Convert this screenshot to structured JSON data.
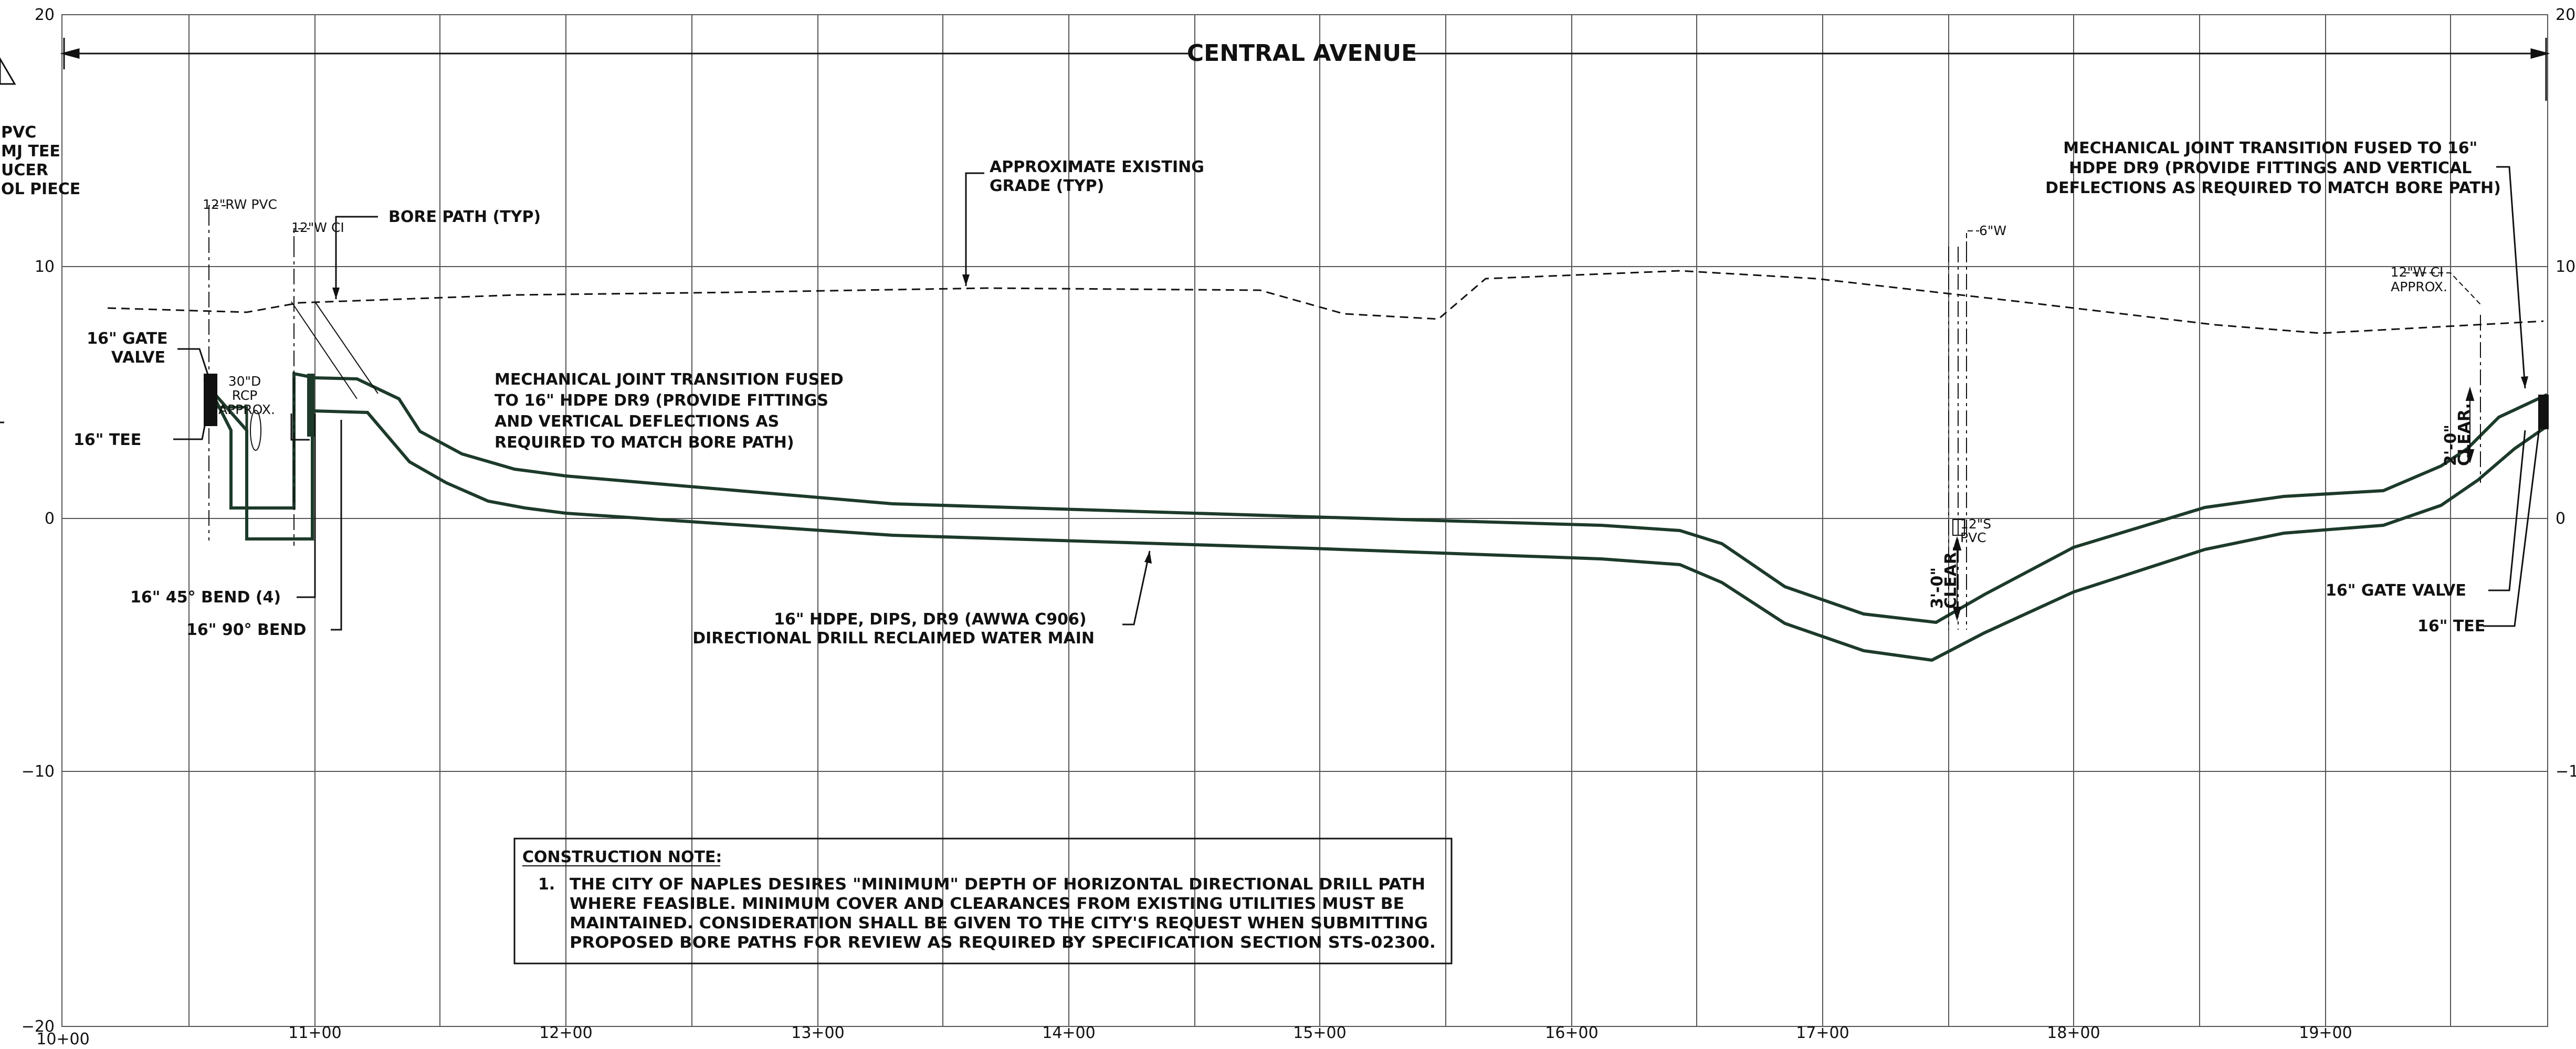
{
  "street_name": "CENTRAL AVENUE",
  "colors": {
    "grid": "#555555",
    "linework": "#111111",
    "pipe": "#1d3a2a",
    "background": "#ffffff"
  },
  "y_axis_left": [
    "20",
    "10",
    "0",
    "−10",
    "−20"
  ],
  "y_axis_right": [
    "20",
    "10",
    "0",
    "−1"
  ],
  "x_axis": [
    "10+00",
    "11+00",
    "12+00",
    "13+00",
    "14+00",
    "15+00",
    "16+00",
    "17+00",
    "18+00",
    "19+00"
  ],
  "labels": {
    "left_clip": [
      "PVC",
      "MJ TEE",
      "UCER",
      "OL PIECE"
    ],
    "rw_pvc": "12\"RW PVC",
    "w_ci_left": "12\"W CI",
    "bore_path": "BORE PATH (TYP)",
    "existing_grade": [
      "APPROXIMATE EXISTING",
      "GRADE (TYP)"
    ],
    "gate_valve_left": [
      "16\" GATE",
      "VALVE"
    ],
    "rcp": [
      "30\"D",
      "RCP",
      "APPROX."
    ],
    "tee_left": "16\" TEE",
    "mj_left": [
      "MECHANICAL JOINT TRANSITION FUSED",
      "TO 16\" HDPE DR9 (PROVIDE FITTINGS",
      "AND VERTICAL DEFLECTIONS AS",
      "REQUIRED TO MATCH BORE PATH)"
    ],
    "bend_45": "16\" 45° BEND (4)",
    "bend_90": "16\" 90° BEND",
    "main": [
      "16\" HDPE, DIPS, DR9 (AWWA C906)",
      "DIRECTIONAL DRILL RECLAIMED WATER MAIN"
    ],
    "w6": "6\"W",
    "s12": [
      "12\"S",
      "PVC"
    ],
    "clear_3": [
      "3'-0\"",
      "CLEAR."
    ],
    "mj_right": [
      "MECHANICAL JOINT TRANSITION FUSED TO 16\"",
      "HDPE DR9 (PROVIDE FITTINGS AND  VERTICAL",
      "DEFLECTIONS AS REQUIRED TO MATCH BORE PATH)"
    ],
    "w_ci_right": [
      "12\"W CI",
      "APPROX."
    ],
    "clear_2": [
      "2'-0\"",
      "CLEAR."
    ],
    "gate_valve_right": "16\" GATE VALVE",
    "tee_right": "16\" TEE"
  },
  "construction_note": {
    "heading": "CONSTRUCTION NOTE:",
    "number": "1.",
    "lines": [
      "THE CITY OF NAPLES DESIRES \"MINIMUM\" DEPTH OF HORIZONTAL DIRECTIONAL DRILL PATH",
      "WHERE FEASIBLE.  MINIMUM COVER AND CLEARANCES FROM EXISTING UTILITIES MUST BE",
      "MAINTAINED.  CONSIDERATION SHALL BE GIVEN TO THE CITY'S REQUEST WHEN SUBMITTING",
      "PROPOSED BORE PATHS FOR REVIEW AS REQUIRED BY SPECIFICATION SECTION STS-02300."
    ]
  }
}
